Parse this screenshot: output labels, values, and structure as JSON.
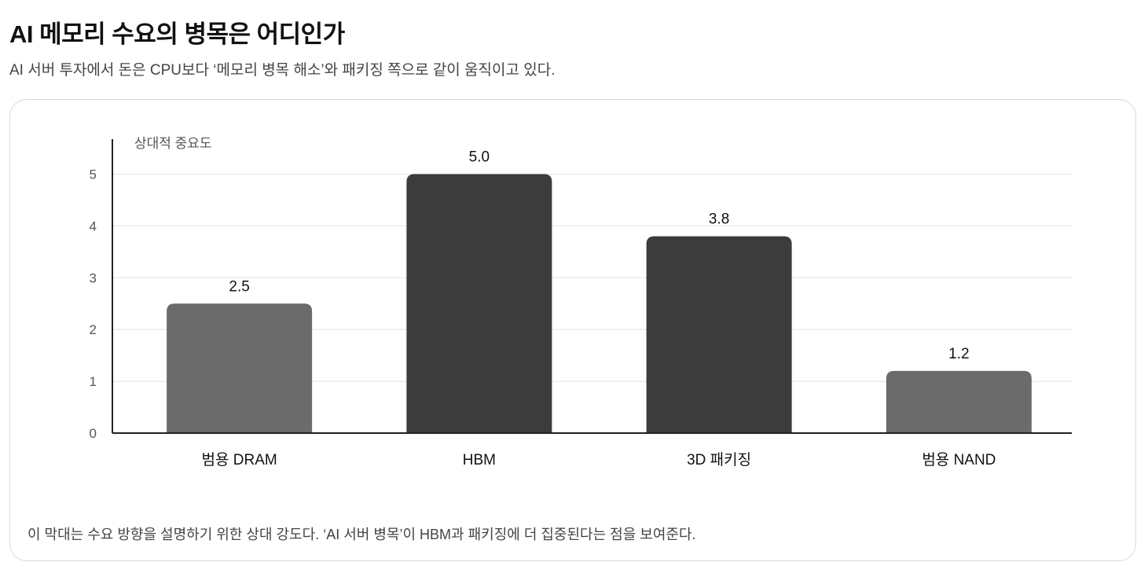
{
  "page": {
    "title": "AI 메모리 수요의 병목은 어디인가",
    "subtitle": "AI 서버 투자에서 돈은 CPU보다 ‘메모리 병목 해소’와 패키징 쪽으로 같이 움직이고 있다.",
    "note": "이 막대는 수요 방향을 설명하기 위한 상대 강도다. ‘AI 서버 병목’이 HBM과 패키징에 더 집중된다는 점을 보여준다."
  },
  "chart_data": {
    "type": "bar",
    "title": "",
    "xlabel": "",
    "ylabel": "상대적 중요도",
    "categories": [
      "범용 DRAM",
      "HBM",
      "3D 패키징",
      "범용 NAND"
    ],
    "values": [
      2.5,
      5.0,
      3.8,
      1.2
    ],
    "value_labels": [
      "2.5",
      "5.0",
      "3.8",
      "1.2"
    ],
    "bar_colors": [
      "#6b6b6b",
      "#3c3c3c",
      "#3c3c3c",
      "#6b6b6b"
    ],
    "yticks": [
      0,
      1,
      2,
      3,
      4,
      5
    ],
    "ylim": [
      0,
      5.6
    ],
    "grid": true,
    "legend": "none",
    "colors": {
      "axis": "#222222",
      "grid": "#e6e6e6",
      "tick_text": "#555555",
      "label_text": "#111111"
    }
  }
}
